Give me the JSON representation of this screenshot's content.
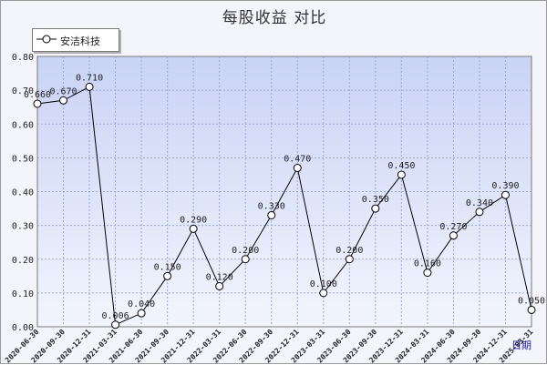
{
  "chart_data": {
    "type": "line",
    "title": "每股收益  对比",
    "xlabel": "日期",
    "ylabel": "",
    "ylim": [
      0,
      0.8
    ],
    "yticks": [
      "0.00",
      "0.10",
      "0.20",
      "0.30",
      "0.40",
      "0.50",
      "0.60",
      "0.70",
      "0.80"
    ],
    "grid": true,
    "legend_position": "top-left",
    "x": [
      "2020-06-30",
      "2020-09-30",
      "2020-12-31",
      "2021-03-31",
      "2021-06-30",
      "2021-09-30",
      "2021-12-31",
      "2022-03-31",
      "2022-06-30",
      "2022-09-30",
      "2022-12-31",
      "2023-03-31",
      "2023-06-30",
      "2023-09-30",
      "2023-12-31",
      "2024-03-31",
      "2024-06-30",
      "2024-09-30",
      "2024-12-31",
      "2025-03-31"
    ],
    "x_tick_labels": [
      "2020-06-30",
      "2020-09-30",
      "2020-12-31",
      "2021-03-31",
      "2021-06-30",
      "2021-09-30",
      "2021-12-31",
      "2022-03-31",
      "2022-06-30",
      "2022-09-30",
      "2022-12-31",
      "2023-03-31",
      "2023-06-30",
      "2023-09-30",
      "2023-12-31",
      "2024-03-31",
      "2024-06-30",
      "2024-09-30",
      "2024-12-31",
      "2025-03-31"
    ],
    "series": [
      {
        "name": "安洁科技",
        "values": [
          0.66,
          0.67,
          0.71,
          0.006,
          0.04,
          0.15,
          0.29,
          0.12,
          0.2,
          0.33,
          0.47,
          0.1,
          0.2,
          0.35,
          0.45,
          0.16,
          0.27,
          0.34,
          0.39,
          0.05
        ],
        "labels": [
          "0.660",
          "0.670",
          "0.710",
          "0.006",
          "0.040",
          "0.150",
          "0.290",
          "0.120",
          "0.200",
          "0.330",
          "0.470",
          "0.100",
          "0.200",
          "0.350",
          "0.450",
          "0.160",
          "0.270",
          "0.340",
          "0.390",
          "0.050"
        ],
        "color": "#000000"
      }
    ],
    "colors": {
      "plot_bg_top": "#c9d3f5",
      "plot_bg_bottom": "#f3f5fd",
      "grid": "#9aa6d6",
      "line": "#000000"
    }
  }
}
